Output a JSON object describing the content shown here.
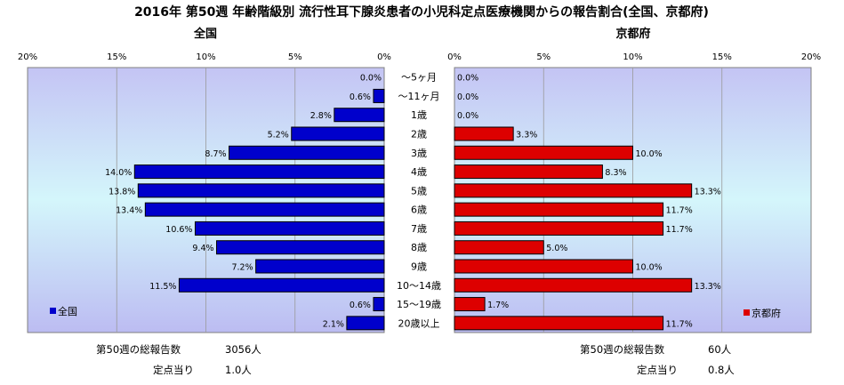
{
  "chart_data": {
    "type": "bar",
    "title": "2016年 第50週 年齢階級別 流行性耳下腺炎患者の小児科定点医療機関からの報告割合(全国、京都府)",
    "categories": [
      "～5ヶ月",
      "～11ヶ月",
      "1歳",
      "2歳",
      "3歳",
      "4歳",
      "5歳",
      "6歳",
      "7歳",
      "8歳",
      "9歳",
      "10～14歳",
      "15～19歳",
      "20歳以上"
    ],
    "series": [
      {
        "name": "全国",
        "color": "#0000cc",
        "values": [
          0.0,
          0.6,
          2.8,
          5.2,
          8.7,
          14.0,
          13.8,
          13.4,
          10.6,
          9.4,
          7.2,
          11.5,
          0.6,
          2.1
        ],
        "labels": [
          "0.0%",
          "0.6%",
          "2.8%",
          "5.2%",
          "8.7%",
          "14.0%",
          "13.8%",
          "13.4%",
          "10.6%",
          "9.4%",
          "7.2%",
          "11.5%",
          "0.6%",
          "2.1%"
        ]
      },
      {
        "name": "京都府",
        "color": "#dd0000",
        "values": [
          0.0,
          0.0,
          0.0,
          3.3,
          10.0,
          8.3,
          13.3,
          11.7,
          11.7,
          5.0,
          10.0,
          13.3,
          1.7,
          11.7
        ],
        "labels": [
          "0.0%",
          "0.0%",
          "0.0%",
          "3.3%",
          "10.0%",
          "8.3%",
          "13.3%",
          "11.7%",
          "11.7%",
          "5.0%",
          "10.0%",
          "13.3%",
          "1.7%",
          "11.7%"
        ]
      }
    ],
    "xlim": [
      0,
      20
    ],
    "ticks_left": [
      "20%",
      "15%",
      "10%",
      "5%",
      "0%"
    ],
    "ticks_right": [
      "0%",
      "5%",
      "10%",
      "15%",
      "20%"
    ],
    "panel_titles": [
      "全国",
      "京都府"
    ],
    "legend_left": "全国",
    "legend_right": "京都府",
    "grid": true
  },
  "footer": {
    "national_total_label": "第50週の総報告数",
    "national_total_value": "3056人",
    "national_per_label": "定点当り",
    "national_per_value": "1.0人",
    "kyoto_total_label": "第50週の総報告数",
    "kyoto_total_value": "60人",
    "kyoto_per_label": "定点当り",
    "kyoto_per_value": "0.8人"
  }
}
